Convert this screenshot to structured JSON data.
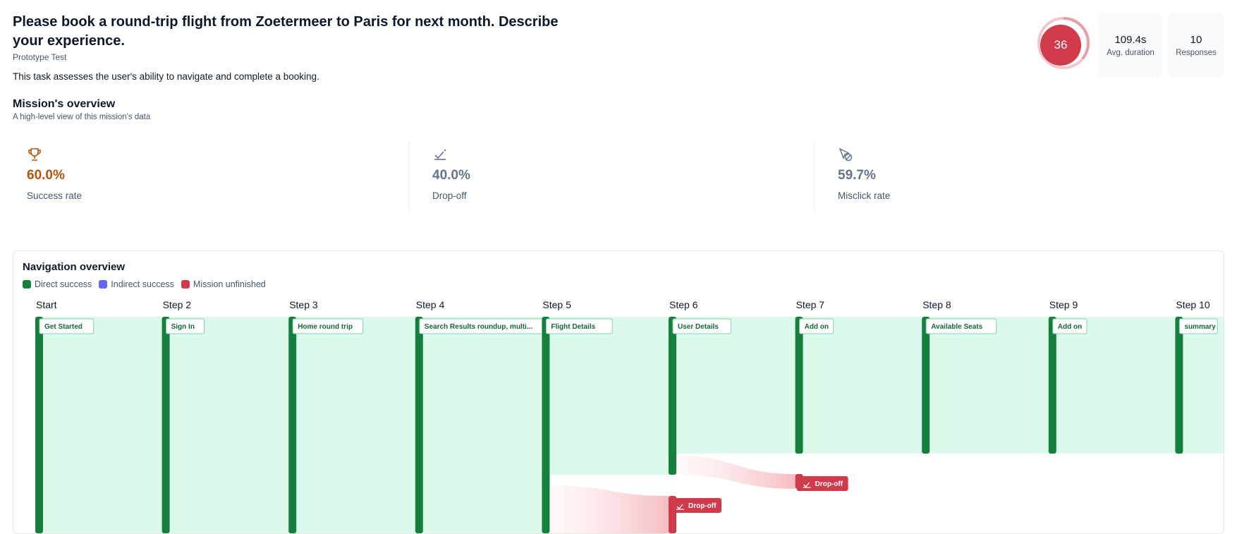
{
  "header": {
    "title": "Please book a round-trip flight from Zoetermeer to Paris for next month. Describe your experience.",
    "subtitle": "Prototype Test",
    "description": "This task assesses the user's ability to navigate and complete a booking."
  },
  "score": {
    "value": "36",
    "fraction": 0.36,
    "color": "#d13a4a"
  },
  "stats": [
    {
      "value": "109.4s",
      "label": "Avg. duration"
    },
    {
      "value": "10",
      "label": "Responses"
    }
  ],
  "overview": {
    "title": "Mission's overview",
    "subtitle": "A high-level view of this mission's data",
    "metrics": [
      {
        "icon": "trophy-icon",
        "value": "60.0%",
        "label": "Success rate",
        "color": "#b45309"
      },
      {
        "icon": "drop-off-icon",
        "value": "40.0%",
        "label": "Drop-off",
        "color": "#64748b"
      },
      {
        "icon": "misclick-icon",
        "value": "59.7%",
        "label": "Misclick rate",
        "color": "#64748b"
      }
    ]
  },
  "navigation": {
    "title": "Navigation overview",
    "legend": [
      {
        "label": "Direct success",
        "color": "#15803d"
      },
      {
        "label": "Indirect success",
        "color": "#6366f1"
      },
      {
        "label": "Mission unfinished",
        "color": "#d13a4a"
      }
    ],
    "steps": [
      {
        "label": "Start",
        "screen": "Get Started"
      },
      {
        "label": "Step 2",
        "screen": "Sign In"
      },
      {
        "label": "Step 3",
        "screen": "Home round trip"
      },
      {
        "label": "Step 4",
        "screen": "Search Results roundup, multi..."
      },
      {
        "label": "Step 5",
        "screen": "Flight Details"
      },
      {
        "label": "Step 6",
        "screen": "User Details"
      },
      {
        "label": "Step 7",
        "screen": "Add on"
      },
      {
        "label": "Step 8",
        "screen": "Available Seats"
      },
      {
        "label": "Step 9",
        "screen": "Add on"
      },
      {
        "label": "Step 10",
        "screen": "summary"
      }
    ],
    "dropoffs": [
      {
        "label": "Drop-off",
        "from_step": 5,
        "at_step": 6
      },
      {
        "label": "Drop-off",
        "from_step": 6,
        "at_step": 7
      }
    ],
    "colors": {
      "success": "#15803d",
      "flow": "#dcfaec",
      "dropoff": "#d13a4a"
    }
  }
}
